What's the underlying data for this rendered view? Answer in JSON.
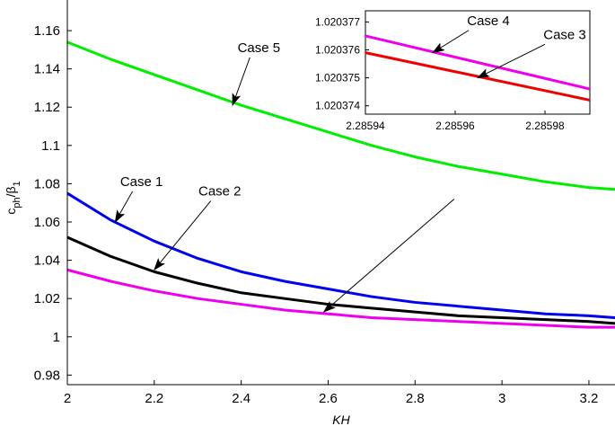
{
  "chart_data": [
    {
      "type": "line",
      "xlabel": "KH",
      "ylabel_main": "c",
      "ylabel_sub": "ph",
      "ylabel_slash": "/β",
      "ylabel_sub2": "1",
      "xlim": [
        2.0,
        3.26
      ],
      "ylim": [
        0.975,
        1.176
      ],
      "xticks": [
        "2",
        "2.2",
        "2.4",
        "2.6",
        "2.8",
        "3",
        "3.2"
      ],
      "xtick_values": [
        2.0,
        2.2,
        2.4,
        2.6,
        2.8,
        3.0,
        3.2
      ],
      "yticks": [
        "0.98",
        "1",
        "1.02",
        "1.04",
        "1.06",
        "1.08",
        "1.1",
        "1.12",
        "1.14",
        "1.16"
      ],
      "ytick_values": [
        0.98,
        1.0,
        1.02,
        1.04,
        1.06,
        1.08,
        1.1,
        1.12,
        1.14,
        1.16
      ],
      "series": [
        {
          "color": "#00ee00",
          "x": [
            2.0,
            2.1,
            2.2,
            2.3,
            2.4,
            2.5,
            2.6,
            2.7,
            2.8,
            2.9,
            3.0,
            3.1,
            3.2,
            3.26
          ],
          "y": [
            1.154,
            1.145,
            1.137,
            1.129,
            1.121,
            1.114,
            1.107,
            1.1,
            1.094,
            1.089,
            1.085,
            1.081,
            1.078,
            1.077
          ]
        },
        {
          "color": "#0000ee",
          "x": [
            2.0,
            2.1,
            2.2,
            2.3,
            2.4,
            2.5,
            2.6,
            2.7,
            2.8,
            2.9,
            3.0,
            3.1,
            3.2,
            3.26
          ],
          "y": [
            1.075,
            1.061,
            1.05,
            1.041,
            1.034,
            1.029,
            1.025,
            1.021,
            1.018,
            1.016,
            1.014,
            1.012,
            1.011,
            1.01
          ]
        },
        {
          "color": "#000000",
          "x": [
            2.0,
            2.1,
            2.2,
            2.3,
            2.4,
            2.5,
            2.6,
            2.7,
            2.8,
            2.9,
            3.0,
            3.1,
            3.2,
            3.26
          ],
          "y": [
            1.052,
            1.042,
            1.034,
            1.028,
            1.023,
            1.02,
            1.017,
            1.015,
            1.013,
            1.011,
            1.01,
            1.009,
            1.008,
            1.007
          ]
        },
        {
          "color": "#ee00ee",
          "x": [
            2.0,
            2.1,
            2.2,
            2.3,
            2.4,
            2.5,
            2.6,
            2.7,
            2.8,
            2.9,
            3.0,
            3.1,
            3.2,
            3.26
          ],
          "y": [
            1.035,
            1.029,
            1.024,
            1.02,
            1.017,
            1.014,
            1.012,
            1.01,
            1.009,
            1.008,
            1.007,
            1.006,
            1.005,
            1.005
          ]
        }
      ],
      "annotations": [
        {
          "text": "Case 5",
          "tail": [
            2.42,
            1.146
          ],
          "head": [
            2.38,
            1.121
          ]
        },
        {
          "text": "Case 1",
          "tail": [
            2.15,
            1.076
          ],
          "head": [
            2.11,
            1.06
          ]
        },
        {
          "text": "Case 2",
          "tail": [
            2.33,
            1.071
          ],
          "head": [
            2.2,
            1.035
          ]
        },
        {
          "text": "",
          "tail": [
            2.89,
            1.072
          ],
          "head": [
            2.59,
            1.013
          ]
        }
      ]
    },
    {
      "type": "line",
      "inset": true,
      "xlim": [
        2.28594,
        2.28599
      ],
      "ylim": [
        1.0203737,
        1.0203774
      ],
      "xticks": [
        "2.28594",
        "2.28596",
        "2.28598"
      ],
      "xtick_values": [
        2.28594,
        2.28596,
        2.28598
      ],
      "yticks": [
        "1.020374",
        "1.020375",
        "1.020376",
        "1.020377"
      ],
      "ytick_values": [
        1.020374,
        1.020375,
        1.020376,
        1.020377
      ],
      "series": [
        {
          "color": "#ee00ee",
          "x": [
            2.28594,
            2.28599
          ],
          "y": [
            1.0203765,
            1.0203746
          ]
        },
        {
          "color": "#ee0000",
          "x": [
            2.28594,
            2.28599
          ],
          "y": [
            1.0203759,
            1.0203742
          ]
        }
      ],
      "annotations": [
        {
          "text": "Case 4",
          "tail": [
            2.285963,
            1.0203767
          ],
          "head": [
            2.285955,
            1.0203759
          ]
        },
        {
          "text": "Case 3",
          "tail": [
            2.28598,
            1.0203762
          ],
          "head": [
            2.285965,
            1.020375
          ]
        }
      ]
    }
  ]
}
